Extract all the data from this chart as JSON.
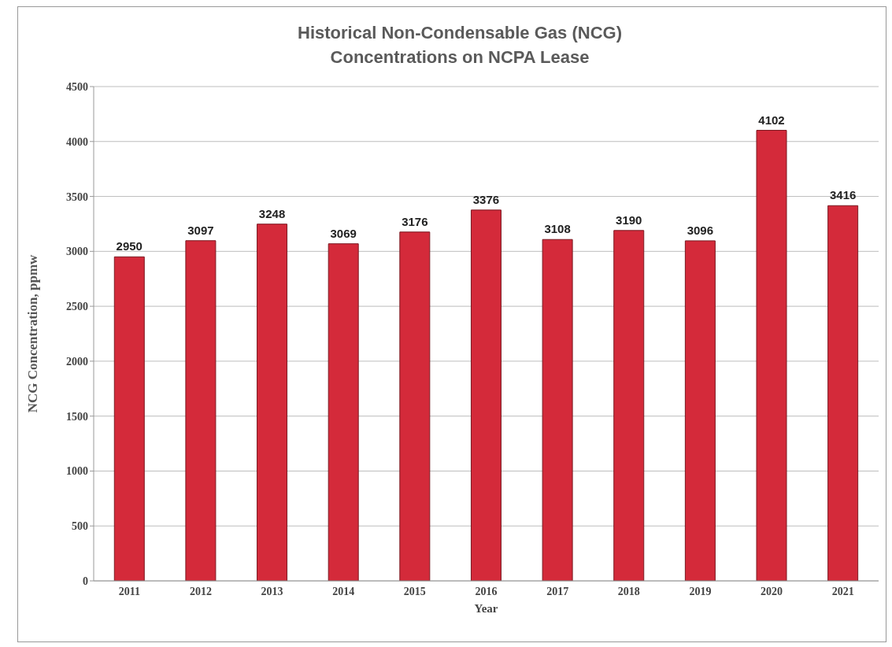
{
  "chart_data": {
    "type": "bar",
    "title": "Historical Non-Condensable Gas (NCG)\nConcentrations on NCPA Lease",
    "xlabel": "Year",
    "ylabel": "NCG Concentration, ppmw",
    "categories": [
      "2011",
      "2012",
      "2013",
      "2014",
      "2015",
      "2016",
      "2017",
      "2018",
      "2019",
      "2020",
      "2021"
    ],
    "values": [
      2950,
      3097,
      3248,
      3069,
      3176,
      3376,
      3108,
      3190,
      3096,
      4102,
      3416
    ],
    "color": "#d42a3a",
    "ylim": [
      0,
      4500
    ],
    "yticks": [
      0,
      500,
      1000,
      1500,
      2000,
      2500,
      3000,
      3500,
      4000,
      4500
    ],
    "grid": "y",
    "data_labels": true
  }
}
